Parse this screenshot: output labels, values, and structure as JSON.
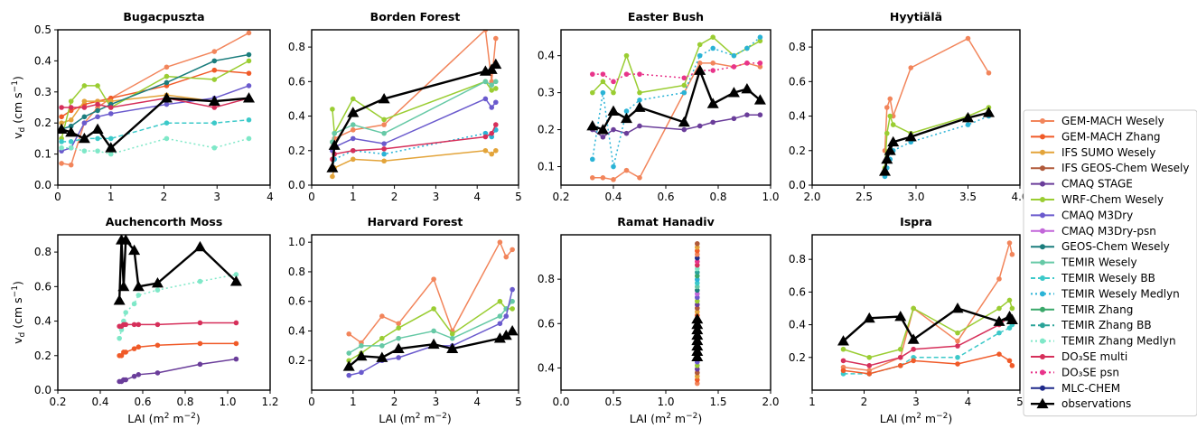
{
  "yaxis_label": "v",
  "yaxis_label_sub": "d",
  "yaxis_label_unit": " (cm s",
  "yaxis_label_exp": "−1",
  "yaxis_label_close": ")",
  "xaxis_label": "LAI  (m",
  "xaxis_label_exp1": "2",
  "xaxis_label_mid": " m",
  "xaxis_label_exp2": "−2",
  "xaxis_label_close": ")",
  "legend": [
    {
      "name": "GEM-MACH Wesely",
      "color": "#f2855b",
      "style": "solid",
      "marker": "dot"
    },
    {
      "name": "GEM-MACH Zhang",
      "color": "#f05a28",
      "style": "solid",
      "marker": "dot"
    },
    {
      "name": "IFS SUMO Wesely",
      "color": "#e3a43a",
      "style": "solid",
      "marker": "dot"
    },
    {
      "name": "IFS GEOS-Chem Wesely",
      "color": "#b05a3a",
      "style": "solid",
      "marker": "dot"
    },
    {
      "name": "CMAQ STAGE",
      "color": "#6a3d9a",
      "style": "solid",
      "marker": "dot"
    },
    {
      "name": "WRF-Chem Wesely",
      "color": "#9acd32",
      "style": "solid",
      "marker": "dot"
    },
    {
      "name": "CMAQ M3Dry",
      "color": "#6a5acd",
      "style": "solid",
      "marker": "dot"
    },
    {
      "name": "CMAQ M3Dry-psn",
      "color": "#c266d9",
      "style": "solid",
      "marker": "dot"
    },
    {
      "name": "GEOS-Chem Wesely",
      "color": "#1b7d7d",
      "style": "solid",
      "marker": "dot"
    },
    {
      "name": "TEMIR Wesely",
      "color": "#66c9a6",
      "style": "solid",
      "marker": "dot"
    },
    {
      "name": "TEMIR Wesely BB",
      "color": "#3cc9c9",
      "style": "dashed",
      "marker": "dot"
    },
    {
      "name": "TEMIR Wesely Medlyn",
      "color": "#2ab3d6",
      "style": "dotted",
      "marker": "dot"
    },
    {
      "name": "TEMIR Zhang",
      "color": "#3aa86a",
      "style": "solid",
      "marker": "dot"
    },
    {
      "name": "TEMIR Zhang BB",
      "color": "#2aa398",
      "style": "dashed",
      "marker": "dot"
    },
    {
      "name": "TEMIR Zhang Medlyn",
      "color": "#7fe8c8",
      "style": "dotted",
      "marker": "dot"
    },
    {
      "name": "DO₃SE multi",
      "color": "#d62f5a",
      "style": "solid",
      "marker": "dot"
    },
    {
      "name": "DO₃SE psn",
      "color": "#e8348a",
      "style": "dotted",
      "marker": "dot"
    },
    {
      "name": "MLC-CHEM",
      "color": "#1f2a8a",
      "style": "solid",
      "marker": "dot"
    },
    {
      "name": "observations",
      "color": "#000000",
      "style": "solid",
      "marker": "triangle"
    }
  ],
  "chart_data": [
    {
      "type": "line",
      "title": "Bugacpuszta",
      "xlabel": "",
      "ylabel": "v_d (cm s^-1)",
      "xlim": [
        0,
        4
      ],
      "ylim": [
        0,
        0.5
      ],
      "xticks": [
        "0",
        "1",
        "2",
        "3",
        "4"
      ],
      "yticks": [
        "0.0",
        "0.1",
        "0.2",
        "0.3",
        "0.4",
        "0.5"
      ],
      "x": [
        0.07,
        0.25,
        0.5,
        0.75,
        1.0,
        2.05,
        2.95,
        3.6
      ],
      "series": [
        {
          "name": "GEM-MACH Wesely",
          "values": [
            0.07,
            0.065,
            0.2,
            0.25,
            0.28,
            0.38,
            0.43,
            0.49
          ]
        },
        {
          "name": "GEM-MACH Zhang",
          "values": [
            0.22,
            0.24,
            0.26,
            0.27,
            0.28,
            0.32,
            0.37,
            0.36
          ]
        },
        {
          "name": "IFS SUMO Wesely",
          "values": [
            0.2,
            0.21,
            0.27,
            0.27,
            0.27,
            0.29,
            0.27,
            0.28
          ]
        },
        {
          "name": "WRF-Chem Wesely",
          "values": [
            0.15,
            0.27,
            0.32,
            0.32,
            0.25,
            0.35,
            0.34,
            0.4
          ]
        },
        {
          "name": "CMAQ M3Dry",
          "values": [
            0.11,
            0.12,
            0.2,
            0.22,
            0.23,
            0.26,
            0.28,
            0.32
          ]
        },
        {
          "name": "GEOS-Chem Wesely",
          "values": [
            0.18,
            0.19,
            0.22,
            0.24,
            0.26,
            0.33,
            0.4,
            0.42
          ]
        },
        {
          "name": "TEMIR Wesely BB",
          "values": [
            0.14,
            0.14,
            0.15,
            0.15,
            0.15,
            0.2,
            0.2,
            0.21
          ]
        },
        {
          "name": "TEMIR Zhang Medlyn",
          "values": [
            0.12,
            0.12,
            0.11,
            0.11,
            0.1,
            0.15,
            0.12,
            0.15
          ]
        },
        {
          "name": "DO₃SE multi",
          "values": [
            0.25,
            0.25,
            0.25,
            0.26,
            0.25,
            0.28,
            0.25,
            0.28
          ]
        },
        {
          "name": "observations",
          "values": [
            0.18,
            0.17,
            0.15,
            0.18,
            0.12,
            0.28,
            0.27,
            0.28
          ]
        }
      ]
    },
    {
      "type": "line",
      "title": "Borden Forest",
      "xlabel": "",
      "ylabel": "",
      "xlim": [
        0,
        5
      ],
      "ylim": [
        0,
        0.9
      ],
      "xticks": [
        "0",
        "1",
        "2",
        "3",
        "4",
        "5"
      ],
      "yticks": [
        "0.0",
        "0.2",
        "0.4",
        "0.6",
        "0.8"
      ],
      "x": [
        0.5,
        0.55,
        1.0,
        1.75,
        4.2,
        4.35,
        4.45
      ],
      "series": [
        {
          "name": "GEM-MACH Wesely",
          "values": [
            0.25,
            0.27,
            0.32,
            0.35,
            0.9,
            0.6,
            0.85
          ]
        },
        {
          "name": "WRF-Chem Wesely",
          "values": [
            0.44,
            0.3,
            0.5,
            0.38,
            0.6,
            0.55,
            0.56
          ]
        },
        {
          "name": "CMAQ M3Dry",
          "values": [
            0.2,
            0.22,
            0.27,
            0.24,
            0.5,
            0.45,
            0.48
          ]
        },
        {
          "name": "TEMIR Wesely",
          "values": [
            0.25,
            0.3,
            0.35,
            0.3,
            0.6,
            0.58,
            0.6
          ]
        },
        {
          "name": "IFS SUMO Wesely",
          "values": [
            0.05,
            0.1,
            0.15,
            0.14,
            0.2,
            0.18,
            0.2
          ]
        },
        {
          "name": "TEMIR Wesely Medlyn",
          "values": [
            0.1,
            0.15,
            0.2,
            0.18,
            0.3,
            0.28,
            0.32
          ]
        },
        {
          "name": "DO₃SE multi",
          "values": [
            0.15,
            0.18,
            0.2,
            0.21,
            0.28,
            0.3,
            0.35
          ]
        },
        {
          "name": "observations",
          "values": [
            0.1,
            0.23,
            0.42,
            0.5,
            0.66,
            0.67,
            0.7
          ]
        }
      ]
    },
    {
      "type": "line",
      "title": "Easter Bush",
      "xlabel": "",
      "ylabel": "",
      "xlim": [
        0.2,
        1.0
      ],
      "ylim": [
        0.05,
        0.47
      ],
      "xticks": [
        "0.2",
        "0.4",
        "0.6",
        "0.8",
        "1.0"
      ],
      "yticks": [
        "0.1",
        "0.2",
        "0.3",
        "0.4"
      ],
      "x": [
        0.32,
        0.36,
        0.4,
        0.45,
        0.5,
        0.67,
        0.73,
        0.78,
        0.86,
        0.91,
        0.96
      ],
      "series": [
        {
          "name": "GEM-MACH Wesely",
          "values": [
            0.07,
            0.07,
            0.065,
            0.09,
            0.07,
            0.3,
            0.38,
            0.38,
            0.37,
            0.38,
            0.37
          ]
        },
        {
          "name": "WRF-Chem Wesely",
          "values": [
            0.3,
            0.33,
            0.3,
            0.4,
            0.3,
            0.32,
            0.43,
            0.45,
            0.4,
            0.42,
            0.44
          ]
        },
        {
          "name": "CMAQ STAGE",
          "values": [
            0.2,
            0.18,
            0.2,
            0.19,
            0.21,
            0.2,
            0.21,
            0.22,
            0.23,
            0.24,
            0.24
          ]
        },
        {
          "name": "TEMIR Wesely Medlyn",
          "values": [
            0.12,
            0.3,
            0.1,
            0.25,
            0.28,
            0.3,
            0.4,
            0.42,
            0.4,
            0.42,
            0.45
          ]
        },
        {
          "name": "DO₃SE psn",
          "values": [
            0.35,
            0.35,
            0.33,
            0.35,
            0.35,
            0.34,
            0.36,
            0.36,
            0.37,
            0.38,
            0.38
          ]
        },
        {
          "name": "observations",
          "values": [
            0.21,
            0.2,
            0.25,
            0.23,
            0.26,
            0.22,
            0.36,
            0.27,
            0.3,
            0.31,
            0.28
          ]
        }
      ]
    },
    {
      "type": "line",
      "title": "Hyytiälä",
      "xlabel": "",
      "ylabel": "",
      "xlim": [
        2.0,
        4.0
      ],
      "ylim": [
        0,
        0.9
      ],
      "xticks": [
        "2.0",
        "2.5",
        "3.0",
        "3.5",
        "4.0"
      ],
      "yticks": [
        "0.0",
        "0.2",
        "0.4",
        "0.6",
        "0.8"
      ],
      "x": [
        2.7,
        2.72,
        2.75,
        2.78,
        2.95,
        3.5,
        3.7
      ],
      "series": [
        {
          "name": "GEM-MACH Wesely",
          "values": [
            0.2,
            0.45,
            0.5,
            0.4,
            0.68,
            0.85,
            0.65
          ]
        },
        {
          "name": "WRF-Chem Wesely",
          "values": [
            0.1,
            0.3,
            0.4,
            0.35,
            0.3,
            0.4,
            0.45
          ]
        },
        {
          "name": "TEMIR Wesely Medlyn",
          "values": [
            0.05,
            0.1,
            0.15,
            0.2,
            0.25,
            0.35,
            0.4
          ]
        },
        {
          "name": "observations",
          "values": [
            0.08,
            0.15,
            0.2,
            0.25,
            0.28,
            0.39,
            0.42
          ]
        }
      ]
    },
    {
      "type": "line",
      "title": "Auchencorth Moss",
      "xlabel": "LAI (m^2 m^-2)",
      "ylabel": "v_d (cm s^-1)",
      "xlim": [
        0.2,
        1.2
      ],
      "ylim": [
        0,
        0.9
      ],
      "xticks": [
        "0.2",
        "0.4",
        "0.6",
        "0.8",
        "1.0",
        "1.2"
      ],
      "yticks": [
        "0.0",
        "0.2",
        "0.4",
        "0.6",
        "0.8"
      ],
      "x": [
        0.49,
        0.5,
        0.51,
        0.52,
        0.56,
        0.58,
        0.67,
        0.87,
        1.04
      ],
      "series": [
        {
          "name": "TEMIR Zhang Medlyn",
          "values": [
            0.3,
            0.35,
            0.4,
            0.45,
            0.5,
            0.55,
            0.58,
            0.63,
            0.67
          ]
        },
        {
          "name": "DO₃SE multi",
          "values": [
            0.37,
            0.37,
            0.38,
            0.38,
            0.38,
            0.38,
            0.38,
            0.39,
            0.39
          ]
        },
        {
          "name": "GEM-MACH Zhang",
          "values": [
            0.2,
            0.2,
            0.22,
            0.22,
            0.24,
            0.25,
            0.26,
            0.27,
            0.27
          ]
        },
        {
          "name": "CMAQ STAGE",
          "values": [
            0.05,
            0.05,
            0.06,
            0.06,
            0.08,
            0.09,
            0.1,
            0.15,
            0.18
          ]
        },
        {
          "name": "observations",
          "values": [
            0.52,
            0.87,
            0.6,
            0.87,
            0.81,
            0.6,
            0.62,
            0.83,
            0.63
          ]
        }
      ]
    },
    {
      "type": "line",
      "title": "Harvard Forest",
      "xlabel": "LAI (m^2 m^-2)",
      "ylabel": "",
      "xlim": [
        0,
        5
      ],
      "ylim": [
        0,
        1.05
      ],
      "xticks": [
        "0",
        "1",
        "2",
        "3",
        "4",
        "5"
      ],
      "yticks": [
        "0.2",
        "0.4",
        "0.6",
        "0.8",
        "1.0"
      ],
      "x": [
        0.9,
        1.2,
        1.7,
        2.1,
        2.95,
        3.4,
        4.55,
        4.7,
        4.85
      ],
      "series": [
        {
          "name": "GEM-MACH Wesely",
          "values": [
            0.38,
            0.32,
            0.5,
            0.45,
            0.75,
            0.4,
            1.0,
            0.9,
            0.95
          ]
        },
        {
          "name": "WRF-Chem Wesely",
          "values": [
            0.2,
            0.25,
            0.35,
            0.42,
            0.55,
            0.38,
            0.6,
            0.55,
            0.55
          ]
        },
        {
          "name": "TEMIR Wesely",
          "values": [
            0.25,
            0.3,
            0.3,
            0.35,
            0.4,
            0.35,
            0.5,
            0.55,
            0.6
          ]
        },
        {
          "name": "CMAQ M3Dry",
          "values": [
            0.1,
            0.12,
            0.2,
            0.22,
            0.3,
            0.3,
            0.45,
            0.5,
            0.68
          ]
        },
        {
          "name": "observations",
          "values": [
            0.16,
            0.23,
            0.22,
            0.28,
            0.31,
            0.28,
            0.35,
            0.37,
            0.4
          ]
        }
      ]
    },
    {
      "type": "scatter",
      "title": "Ramat Hanadiv",
      "xlabel": "LAI (m^2 m^-2)",
      "ylabel": "",
      "xlim": [
        0,
        2.0
      ],
      "ylim": [
        0.3,
        1.0
      ],
      "xticks": [
        "0.0",
        "0.5",
        "1.0",
        "1.5",
        "2.0"
      ],
      "yticks": [
        "0.4",
        "0.6",
        "0.8"
      ],
      "x": [
        1.3
      ],
      "series": [
        {
          "name": "range",
          "values": [
            0.33,
            0.96
          ]
        },
        {
          "name": "observations",
          "values": [
            0.45,
            0.62
          ]
        }
      ]
    },
    {
      "type": "line",
      "title": "Ispra",
      "xlabel": "LAI (m^2 m^-2)",
      "ylabel": "",
      "xlim": [
        1,
        5
      ],
      "ylim": [
        0,
        0.95
      ],
      "xticks": [
        "1",
        "2",
        "3",
        "4",
        "5"
      ],
      "yticks": [
        "0.2",
        "0.4",
        "0.6",
        "0.8"
      ],
      "x": [
        1.6,
        2.1,
        2.7,
        2.95,
        3.8,
        4.6,
        4.8,
        4.85
      ],
      "series": [
        {
          "name": "GEM-MACH Wesely",
          "values": [
            0.14,
            0.12,
            0.2,
            0.5,
            0.3,
            0.68,
            0.9,
            0.83
          ]
        },
        {
          "name": "WRF-Chem Wesely",
          "values": [
            0.25,
            0.2,
            0.25,
            0.5,
            0.35,
            0.5,
            0.55,
            0.5
          ]
        },
        {
          "name": "TEMIR Wesely BB",
          "values": [
            0.1,
            0.1,
            0.15,
            0.2,
            0.2,
            0.35,
            0.38,
            0.4
          ]
        },
        {
          "name": "DO₃SE multi",
          "values": [
            0.18,
            0.15,
            0.2,
            0.25,
            0.27,
            0.4,
            0.45,
            0.42
          ]
        },
        {
          "name": "GEM-MACH Zhang",
          "values": [
            0.12,
            0.1,
            0.15,
            0.18,
            0.16,
            0.22,
            0.18,
            0.15
          ]
        },
        {
          "name": "observations",
          "values": [
            0.3,
            0.44,
            0.45,
            0.31,
            0.5,
            0.42,
            0.45,
            0.43
          ]
        }
      ]
    }
  ]
}
